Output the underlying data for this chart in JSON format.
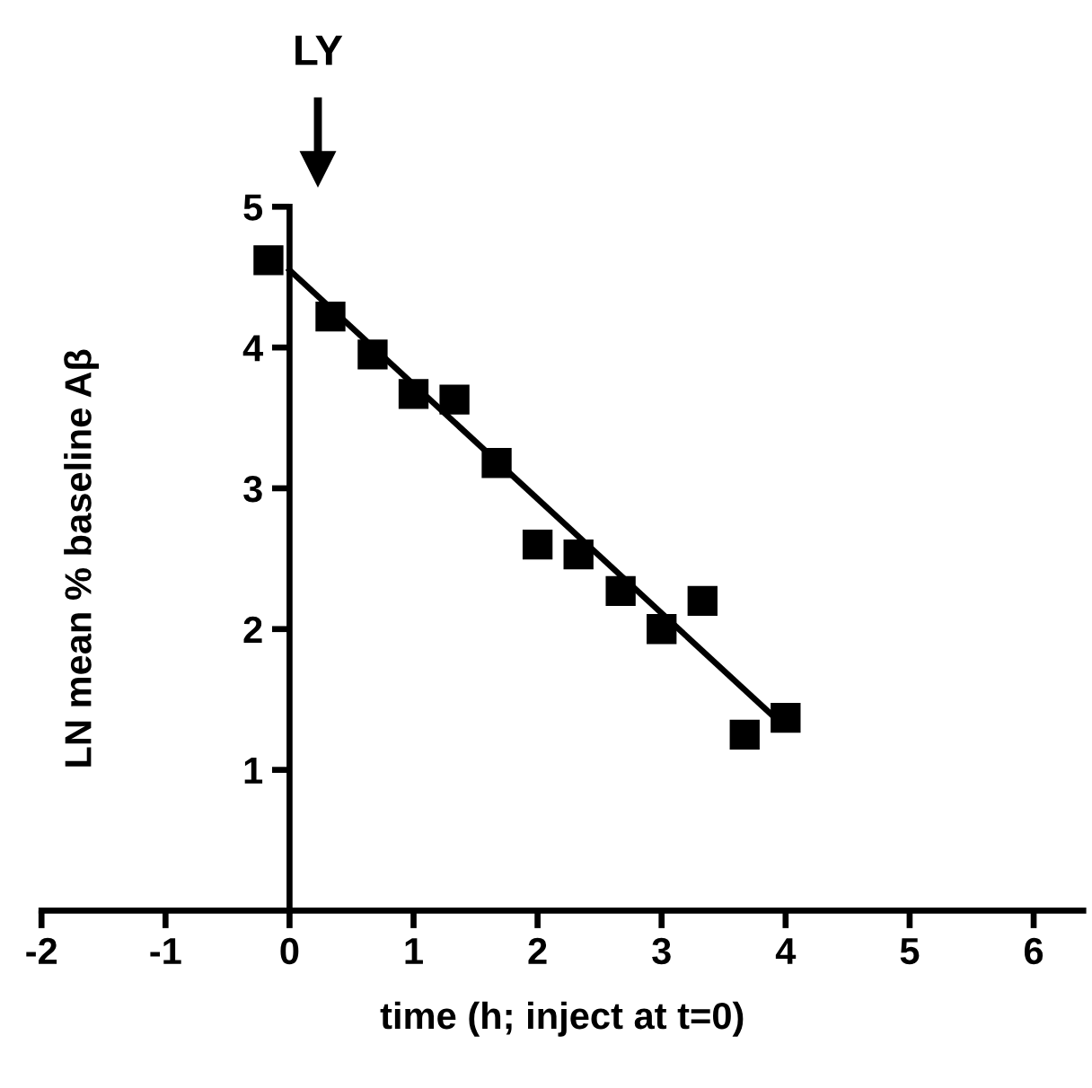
{
  "chart_data": {
    "type": "scatter",
    "xlabel": "time (h; inject at t=0)",
    "ylabel": "LN mean % baseline Aβ",
    "annotations": [
      "LY"
    ],
    "xlim": [
      -2,
      6.4
    ],
    "xticks": [
      -2,
      -1,
      0,
      1,
      2,
      3,
      4,
      5,
      6
    ],
    "ylim": [
      0,
      5
    ],
    "yticks": [
      1,
      2,
      3,
      4,
      5
    ],
    "grid": false,
    "legend": false,
    "series": [
      {
        "marker": "square",
        "color": "#000000",
        "x": [
          -0.17,
          0.33,
          0.67,
          1,
          1.33,
          1.67,
          2,
          2.33,
          2.67,
          3,
          3.33,
          3.67,
          4
        ],
        "values": [
          4.62,
          4.22,
          3.95,
          3.67,
          3.63,
          3.18,
          2.6,
          2.53,
          2.27,
          2.0,
          2.2,
          1.25,
          1.37
        ]
      },
      {
        "type": "line",
        "color": "#000000",
        "line_style": "solid",
        "x": [
          0,
          4
        ],
        "values": [
          4.55,
          1.3
        ]
      }
    ]
  }
}
